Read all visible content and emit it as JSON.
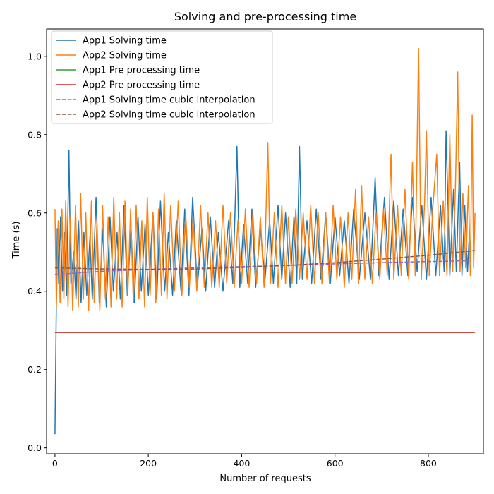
{
  "chart_data": {
    "type": "line",
    "title": "Solving and pre-processing time",
    "xlabel": "Number of requests",
    "ylabel": "Time (s)",
    "xlim": [
      -18,
      918
    ],
    "ylim": [
      -0.015,
      1.07
    ],
    "x_ticks": [
      0,
      200,
      400,
      600,
      800
    ],
    "y_ticks": [
      0.0,
      0.2,
      0.4,
      0.6,
      0.8,
      1.0
    ],
    "x_tick_labels": [
      "0",
      "200",
      "400",
      "600",
      "800"
    ],
    "y_tick_labels": [
      "0.0",
      "0.2",
      "0.4",
      "0.6",
      "0.8",
      "1.0"
    ],
    "grid": false,
    "legend_position": "upper-left",
    "series": [
      {
        "name": "App1 Solving time",
        "color": "#1f77b4",
        "style": "solid",
        "points": [
          [
            0,
            0.035
          ],
          [
            3,
            0.38
          ],
          [
            5,
            0.56
          ],
          [
            8,
            0.42
          ],
          [
            12,
            0.59
          ],
          [
            16,
            0.4
          ],
          [
            20,
            0.55
          ],
          [
            25,
            0.39
          ],
          [
            30,
            0.76
          ],
          [
            34,
            0.42
          ],
          [
            40,
            0.5
          ],
          [
            45,
            0.38
          ],
          [
            50,
            0.58
          ],
          [
            56,
            0.37
          ],
          [
            62,
            0.55
          ],
          [
            68,
            0.39
          ],
          [
            75,
            0.54
          ],
          [
            80,
            0.38
          ],
          [
            88,
            0.64
          ],
          [
            95,
            0.37
          ],
          [
            102,
            0.56
          ],
          [
            110,
            0.36
          ],
          [
            118,
            0.59
          ],
          [
            125,
            0.4
          ],
          [
            133,
            0.55
          ],
          [
            140,
            0.38
          ],
          [
            148,
            0.62
          ],
          [
            155,
            0.39
          ],
          [
            163,
            0.56
          ],
          [
            170,
            0.37
          ],
          [
            178,
            0.59
          ],
          [
            185,
            0.4
          ],
          [
            193,
            0.57
          ],
          [
            200,
            0.39
          ],
          [
            210,
            0.6
          ],
          [
            218,
            0.38
          ],
          [
            226,
            0.63
          ],
          [
            235,
            0.4
          ],
          [
            243,
            0.55
          ],
          [
            252,
            0.39
          ],
          [
            260,
            0.58
          ],
          [
            270,
            0.4
          ],
          [
            278,
            0.61
          ],
          [
            287,
            0.39
          ],
          [
            295,
            0.64
          ],
          [
            305,
            0.41
          ],
          [
            315,
            0.56
          ],
          [
            323,
            0.4
          ],
          [
            333,
            0.59
          ],
          [
            342,
            0.41
          ],
          [
            350,
            0.55
          ],
          [
            360,
            0.4
          ],
          [
            372,
            0.58
          ],
          [
            381,
            0.42
          ],
          [
            390,
            0.77
          ],
          [
            396,
            0.41
          ],
          [
            404,
            0.57
          ],
          [
            413,
            0.42
          ],
          [
            422,
            0.61
          ],
          [
            430,
            0.41
          ],
          [
            440,
            0.56
          ],
          [
            450,
            0.43
          ],
          [
            460,
            0.58
          ],
          [
            468,
            0.42
          ],
          [
            478,
            0.62
          ],
          [
            486,
            0.43
          ],
          [
            494,
            0.6
          ],
          [
            504,
            0.41
          ],
          [
            512,
            0.59
          ],
          [
            518,
            0.42
          ],
          [
            524,
            0.77
          ],
          [
            530,
            0.43
          ],
          [
            540,
            0.58
          ],
          [
            550,
            0.42
          ],
          [
            560,
            0.61
          ],
          [
            570,
            0.43
          ],
          [
            580,
            0.6
          ],
          [
            590,
            0.42
          ],
          [
            600,
            0.59
          ],
          [
            610,
            0.44
          ],
          [
            620,
            0.58
          ],
          [
            630,
            0.42
          ],
          [
            640,
            0.61
          ],
          [
            652,
            0.43
          ],
          [
            664,
            0.6
          ],
          [
            676,
            0.43
          ],
          [
            686,
            0.69
          ],
          [
            694,
            0.44
          ],
          [
            706,
            0.64
          ],
          [
            716,
            0.43
          ],
          [
            726,
            0.63
          ],
          [
            736,
            0.44
          ],
          [
            746,
            0.61
          ],
          [
            756,
            0.44
          ],
          [
            766,
            0.64
          ],
          [
            776,
            0.45
          ],
          [
            786,
            0.62
          ],
          [
            796,
            0.43
          ],
          [
            806,
            0.64
          ],
          [
            816,
            0.44
          ],
          [
            826,
            0.62
          ],
          [
            834,
            0.45
          ],
          [
            838,
            0.81
          ],
          [
            846,
            0.44
          ],
          [
            854,
            0.66
          ],
          [
            860,
            0.45
          ],
          [
            867,
            0.73
          ],
          [
            872,
            0.44
          ],
          [
            878,
            0.62
          ],
          [
            884,
            0.45
          ],
          [
            888,
            0.55
          ]
        ]
      },
      {
        "name": "App2 Solving time",
        "color": "#ff7f0e",
        "style": "solid",
        "points": [
          [
            0,
            0.61
          ],
          [
            3,
            0.36
          ],
          [
            7,
            0.58
          ],
          [
            11,
            0.37
          ],
          [
            15,
            0.61
          ],
          [
            19,
            0.38
          ],
          [
            23,
            0.63
          ],
          [
            28,
            0.36
          ],
          [
            33,
            0.59
          ],
          [
            38,
            0.35
          ],
          [
            44,
            0.62
          ],
          [
            50,
            0.36
          ],
          [
            55,
            0.65
          ],
          [
            61,
            0.38
          ],
          [
            66,
            0.6
          ],
          [
            72,
            0.35
          ],
          [
            78,
            0.63
          ],
          [
            84,
            0.37
          ],
          [
            90,
            0.58
          ],
          [
            96,
            0.35
          ],
          [
            102,
            0.62
          ],
          [
            108,
            0.38
          ],
          [
            114,
            0.59
          ],
          [
            120,
            0.36
          ],
          [
            126,
            0.64
          ],
          [
            132,
            0.38
          ],
          [
            138,
            0.6
          ],
          [
            144,
            0.36
          ],
          [
            150,
            0.63
          ],
          [
            156,
            0.39
          ],
          [
            162,
            0.61
          ],
          [
            168,
            0.37
          ],
          [
            174,
            0.62
          ],
          [
            180,
            0.38
          ],
          [
            186,
            0.58
          ],
          [
            192,
            0.36
          ],
          [
            198,
            0.64
          ],
          [
            204,
            0.39
          ],
          [
            210,
            0.6
          ],
          [
            216,
            0.37
          ],
          [
            222,
            0.61
          ],
          [
            228,
            0.39
          ],
          [
            234,
            0.65
          ],
          [
            240,
            0.38
          ],
          [
            248,
            0.62
          ],
          [
            256,
            0.4
          ],
          [
            264,
            0.63
          ],
          [
            272,
            0.39
          ],
          [
            280,
            0.6
          ],
          [
            288,
            0.41
          ],
          [
            296,
            0.59
          ],
          [
            304,
            0.4
          ],
          [
            312,
            0.62
          ],
          [
            320,
            0.41
          ],
          [
            328,
            0.6
          ],
          [
            336,
            0.41
          ],
          [
            344,
            0.58
          ],
          [
            352,
            0.41
          ],
          [
            360,
            0.62
          ],
          [
            368,
            0.42
          ],
          [
            376,
            0.6
          ],
          [
            384,
            0.41
          ],
          [
            392,
            0.58
          ],
          [
            400,
            0.42
          ],
          [
            408,
            0.61
          ],
          [
            416,
            0.41
          ],
          [
            424,
            0.6
          ],
          [
            432,
            0.42
          ],
          [
            440,
            0.59
          ],
          [
            448,
            0.41
          ],
          [
            456,
            0.78
          ],
          [
            462,
            0.42
          ],
          [
            470,
            0.6
          ],
          [
            478,
            0.41
          ],
          [
            486,
            0.62
          ],
          [
            494,
            0.42
          ],
          [
            500,
            0.59
          ],
          [
            508,
            0.42
          ],
          [
            516,
            0.61
          ],
          [
            524,
            0.43
          ],
          [
            532,
            0.6
          ],
          [
            540,
            0.43
          ],
          [
            548,
            0.62
          ],
          [
            556,
            0.42
          ],
          [
            564,
            0.6
          ],
          [
            572,
            0.42
          ],
          [
            580,
            0.6
          ],
          [
            588,
            0.42
          ],
          [
            596,
            0.62
          ],
          [
            604,
            0.43
          ],
          [
            612,
            0.59
          ],
          [
            620,
            0.41
          ],
          [
            628,
            0.6
          ],
          [
            636,
            0.43
          ],
          [
            644,
            0.66
          ],
          [
            650,
            0.42
          ],
          [
            657,
            0.67
          ],
          [
            664,
            0.43
          ],
          [
            672,
            0.59
          ],
          [
            680,
            0.42
          ],
          [
            688,
            0.6
          ],
          [
            696,
            0.43
          ],
          [
            704,
            0.61
          ],
          [
            712,
            0.44
          ],
          [
            720,
            0.75
          ],
          [
            726,
            0.43
          ],
          [
            734,
            0.62
          ],
          [
            742,
            0.44
          ],
          [
            750,
            0.66
          ],
          [
            758,
            0.43
          ],
          [
            766,
            0.73
          ],
          [
            772,
            0.44
          ],
          [
            779,
            1.02
          ],
          [
            785,
            0.43
          ],
          [
            792,
            0.63
          ],
          [
            796,
            0.81
          ],
          [
            802,
            0.44
          ],
          [
            810,
            0.62
          ],
          [
            818,
            0.75
          ],
          [
            824,
            0.44
          ],
          [
            832,
            0.63
          ],
          [
            840,
            0.44
          ],
          [
            846,
            0.8
          ],
          [
            852,
            0.45
          ],
          [
            858,
            0.66
          ],
          [
            863,
            0.96
          ],
          [
            868,
            0.45
          ],
          [
            874,
            0.65
          ],
          [
            880,
            0.46
          ],
          [
            886,
            0.67
          ],
          [
            890,
            0.44
          ],
          [
            894,
            0.85
          ],
          [
            897,
            0.46
          ],
          [
            900,
            0.6
          ]
        ]
      },
      {
        "name": "App1 Pre processing time",
        "color": "#2ca02c",
        "style": "solid",
        "points": [
          [
            0,
            0.295
          ],
          [
            900,
            0.295
          ]
        ]
      },
      {
        "name": "App2 Pre processing time",
        "color": "#d62728",
        "style": "solid",
        "points": [
          [
            0,
            0.295
          ],
          [
            900,
            0.295
          ]
        ]
      },
      {
        "name": "App1 Solving time cubic interpolation",
        "color": "#9467bd",
        "style": "dashed",
        "points": [
          [
            0,
            0.443
          ],
          [
            100,
            0.451
          ],
          [
            200,
            0.456
          ],
          [
            300,
            0.46
          ],
          [
            400,
            0.463
          ],
          [
            500,
            0.466
          ],
          [
            600,
            0.47
          ],
          [
            700,
            0.473
          ],
          [
            800,
            0.476
          ],
          [
            888,
            0.478
          ]
        ]
      },
      {
        "name": "App2 Solving time cubic interpolation",
        "color": "#8c564b",
        "style": "dashed",
        "points": [
          [
            0,
            0.46
          ],
          [
            100,
            0.457
          ],
          [
            200,
            0.456
          ],
          [
            300,
            0.457
          ],
          [
            400,
            0.461
          ],
          [
            500,
            0.466
          ],
          [
            600,
            0.473
          ],
          [
            700,
            0.482
          ],
          [
            800,
            0.492
          ],
          [
            900,
            0.504
          ]
        ]
      }
    ]
  }
}
